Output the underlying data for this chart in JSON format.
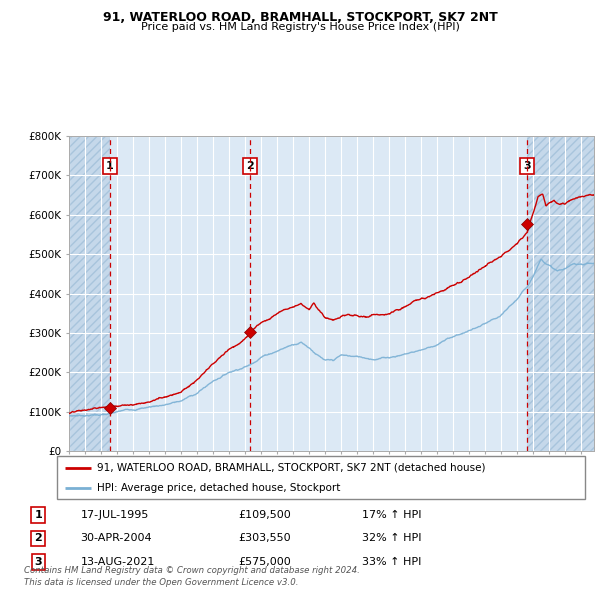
{
  "title_line1": "91, WATERLOO ROAD, BRAMHALL, STOCKPORT, SK7 2NT",
  "title_line2": "Price paid vs. HM Land Registry's House Price Index (HPI)",
  "plot_bg_color": "#dce9f5",
  "grid_color": "#ffffff",
  "red_line_color": "#cc0000",
  "blue_line_color": "#7ab0d4",
  "sale_marker_color": "#cc0000",
  "vline_color": "#cc0000",
  "purchase_dates": [
    1995.54,
    2004.33,
    2021.62
  ],
  "purchase_prices": [
    109500,
    303550,
    575000
  ],
  "purchase_labels": [
    "1",
    "2",
    "3"
  ],
  "purchase_info": [
    {
      "label": "1",
      "date": "17-JUL-1995",
      "price": "£109,500",
      "hpi": "17% ↑ HPI"
    },
    {
      "label": "2",
      "date": "30-APR-2004",
      "price": "£303,550",
      "hpi": "32% ↑ HPI"
    },
    {
      "label": "3",
      "date": "13-AUG-2021",
      "price": "£575,000",
      "hpi": "33% ↑ HPI"
    }
  ],
  "legend_red_label": "91, WATERLOO ROAD, BRAMHALL, STOCKPORT, SK7 2NT (detached house)",
  "legend_blue_label": "HPI: Average price, detached house, Stockport",
  "footer": "Contains HM Land Registry data © Crown copyright and database right 2024.\nThis data is licensed under the Open Government Licence v3.0.",
  "ylim": [
    0,
    800000
  ],
  "yticks": [
    0,
    100000,
    200000,
    300000,
    400000,
    500000,
    600000,
    700000,
    800000
  ],
  "ytick_labels": [
    "£0",
    "£100K",
    "£200K",
    "£300K",
    "£400K",
    "£500K",
    "£600K",
    "£700K",
    "£800K"
  ],
  "xlim_start": 1993.0,
  "xlim_end": 2025.8
}
